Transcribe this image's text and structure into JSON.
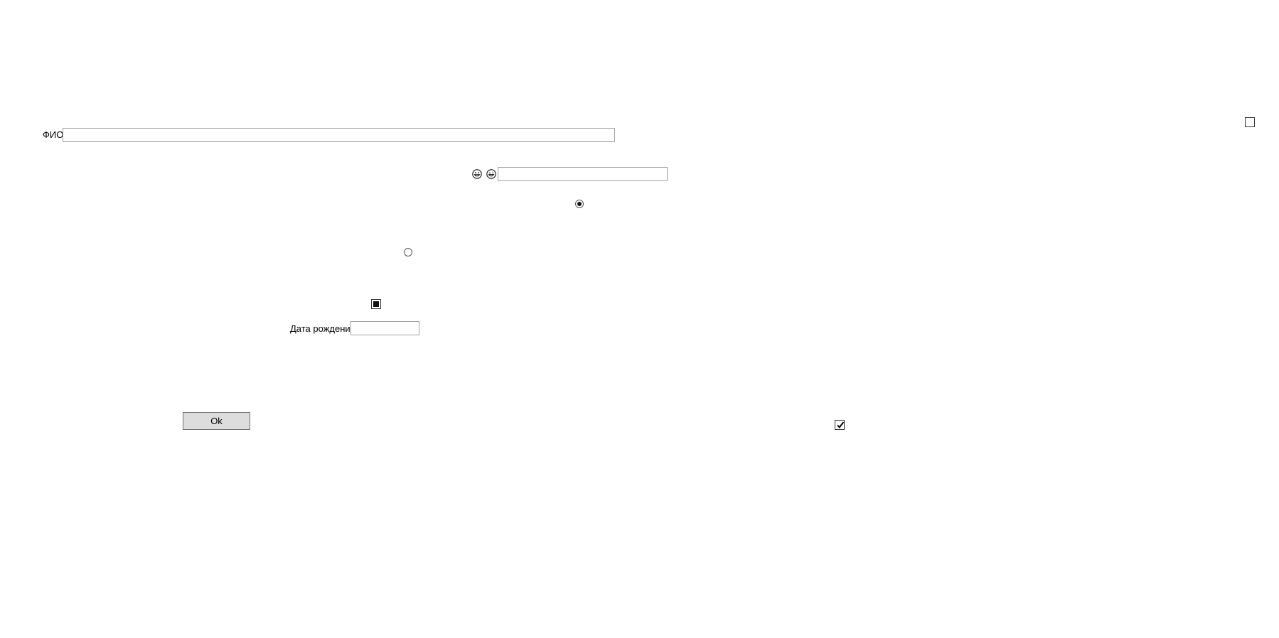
{
  "form": {
    "fio_label": "ФИО",
    "fio_value": "",
    "emoji_field_value": "",
    "icons": [
      "grinning-face-icon",
      "smiling-face-icon"
    ],
    "birthdate_label": "Дата рождения",
    "birthdate_value": "",
    "ok_label": "Ok"
  },
  "controls": {
    "checkbox_top_right": "unchecked",
    "radio_upper": "checked",
    "radio_lower": "unchecked",
    "checkbox_middle": "indeterminate",
    "checkbox_bottom_right": "checked"
  }
}
